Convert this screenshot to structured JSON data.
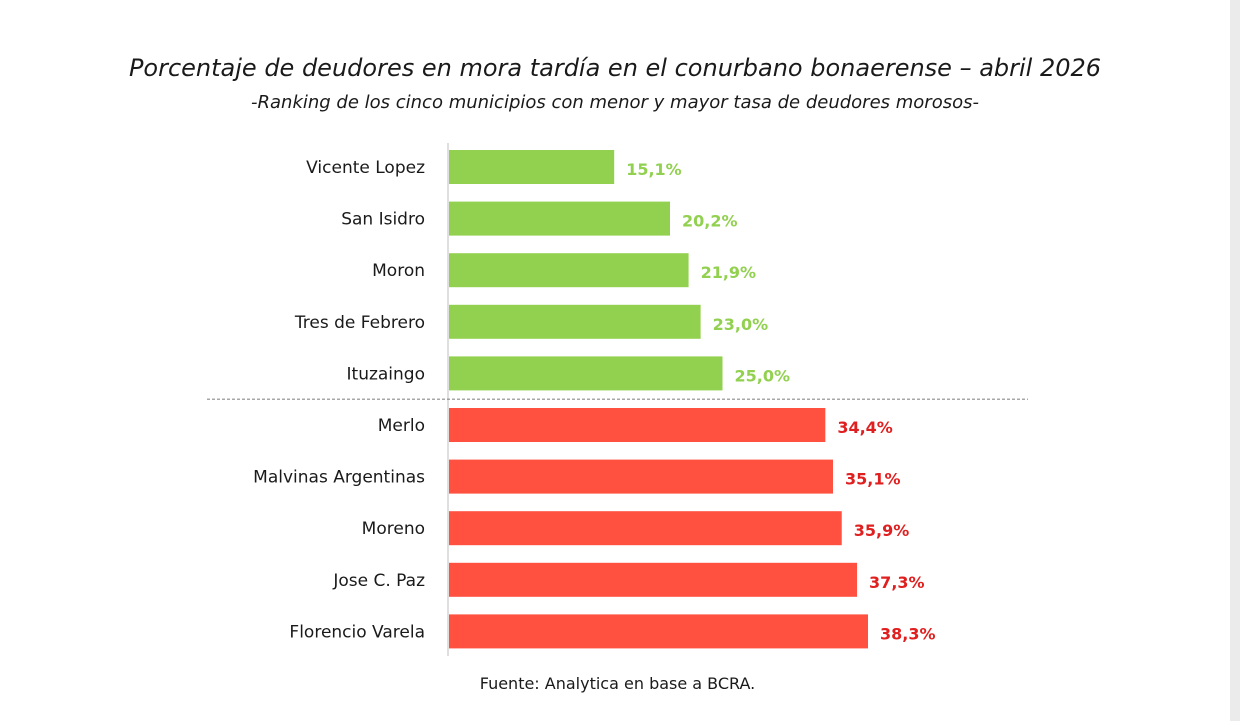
{
  "title": "Porcentaje de deudores en mora tardía en el conurbano bonaerense – abril 2026",
  "subtitle": "-Ranking de los cinco municipios con menor y mayor tasa de deudores morosos-",
  "source": "Fuente: Analytica en base a BCRA.",
  "colors": {
    "low": "#92d050",
    "high": "#ff5040",
    "low_label": "#92d050",
    "high_label": "#e02020",
    "axis": "#bfbfbf",
    "divider": "#8a8a8a"
  },
  "chart_data": {
    "type": "bar",
    "orientation": "horizontal",
    "categories": [
      "Vicente Lopez",
      "San Isidro",
      "Moron",
      "Tres de Febrero",
      "Ituzaingo",
      "Merlo",
      "Malvinas Argentinas",
      "Moreno",
      "Jose C. Paz",
      "Florencio Varela"
    ],
    "values": [
      15.1,
      20.2,
      21.9,
      23.0,
      25.0,
      34.4,
      35.1,
      35.9,
      37.3,
      38.3
    ],
    "value_labels": [
      "15,1%",
      "20,2%",
      "21,9%",
      "23,0%",
      "25,0%",
      "34,4%",
      "35,1%",
      "35,9%",
      "37,3%",
      "38,3%"
    ],
    "groups": [
      "low",
      "low",
      "low",
      "low",
      "low",
      "high",
      "high",
      "high",
      "high",
      "high"
    ],
    "xlim": [
      0,
      38.3
    ],
    "grid": false,
    "legend": "none"
  }
}
